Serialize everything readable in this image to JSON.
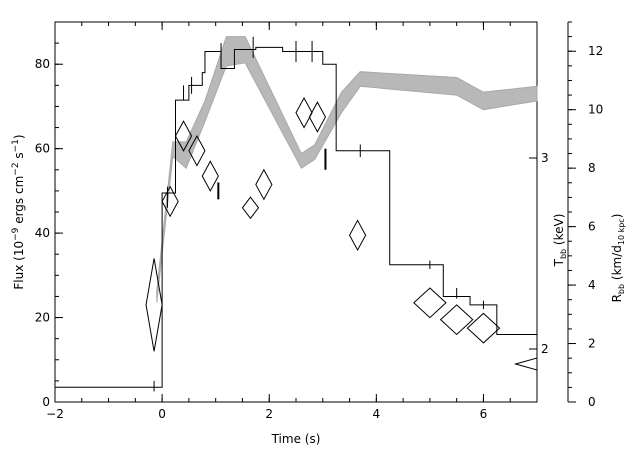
{
  "chart_data": {
    "type": "line",
    "xlabel": "Time (s)",
    "ylabel": {
      "main": "Flux (10",
      "exp1": "−9",
      "mid": " ergs cm",
      "exp2": "−2",
      "mid2": " s",
      "exp3": "−1",
      "end": ")"
    },
    "y2label": {
      "main": "T",
      "sub": "bb",
      "end": " (keV)"
    },
    "y3label": {
      "main": "R",
      "sub": "bb",
      "mid": " (km/d",
      "sub2": "10 kpc",
      "end": ")"
    },
    "xlim": [
      -2,
      7
    ],
    "ylim": [
      0,
      90
    ],
    "x_ticks": [
      "−2",
      "0",
      "2",
      "4",
      "6"
    ],
    "y_ticks": [
      "0",
      "20",
      "40",
      "60",
      "80"
    ],
    "temp_ticks": [
      "2",
      "3"
    ],
    "radius_ticks": [
      "0",
      "2",
      "4",
      "6",
      "8",
      "10",
      "12"
    ],
    "radius_lim": [
      0,
      13
    ],
    "series": [
      {
        "kind": "flux-histogram",
        "points": [
          [
            -2,
            3.5
          ],
          [
            -0.1,
            3.5
          ],
          [
            0,
            3.5
          ],
          [
            0,
            49.5
          ],
          [
            0.25,
            49.5
          ],
          [
            0.25,
            71.5
          ],
          [
            0.5,
            71.5
          ],
          [
            0.5,
            75
          ],
          [
            0.75,
            75
          ],
          [
            0.75,
            78
          ],
          [
            0.8,
            78
          ],
          [
            0.8,
            83
          ],
          [
            1.1,
            83
          ],
          [
            1.1,
            79
          ],
          [
            1.35,
            79
          ],
          [
            1.35,
            83.5
          ],
          [
            1.75,
            83.5
          ],
          [
            1.75,
            84
          ],
          [
            2.25,
            84
          ],
          [
            2.25,
            83
          ],
          [
            3.0,
            83
          ],
          [
            3.0,
            80
          ],
          [
            3.25,
            80
          ],
          [
            3.25,
            59.5
          ],
          [
            4.25,
            59.5
          ],
          [
            4.25,
            32.5
          ],
          [
            5.25,
            32.5
          ],
          [
            5.25,
            25
          ],
          [
            5.75,
            25
          ],
          [
            5.75,
            23
          ],
          [
            6.25,
            23
          ],
          [
            6.25,
            16
          ],
          [
            7.0,
            16
          ]
        ],
        "ticks": [
          [
            0.1,
            46,
            51
          ],
          [
            0.4,
            71.5,
            75
          ],
          [
            0.55,
            73,
            77
          ],
          [
            1.1,
            79.5,
            85
          ],
          [
            1.7,
            81.5,
            86.5
          ],
          [
            2.5,
            80.5,
            85.5
          ],
          [
            2.8,
            80.5,
            85.5
          ],
          [
            3.7,
            58,
            61
          ],
          [
            5.0,
            31.5,
            33.5
          ],
          [
            5.5,
            24.5,
            27
          ],
          [
            6.0,
            22,
            24
          ],
          [
            -0.15,
            2.5,
            5
          ]
        ]
      },
      {
        "kind": "radius-band",
        "upper": [
          [
            -0.1,
            3.8
          ],
          [
            0.2,
            8.9
          ],
          [
            0.45,
            8.9
          ],
          [
            0.8,
            10.3
          ],
          [
            1.2,
            12.5
          ],
          [
            1.55,
            12.5
          ],
          [
            2.6,
            8.5
          ],
          [
            2.85,
            8.8
          ],
          [
            3.35,
            10.6
          ],
          [
            3.7,
            11.3
          ],
          [
            5.5,
            11.1
          ],
          [
            6.0,
            10.6
          ],
          [
            7.0,
            10.8
          ]
        ],
        "lower": [
          [
            -0.1,
            3.4
          ],
          [
            0.2,
            8.4
          ],
          [
            0.45,
            8.0
          ],
          [
            0.8,
            9.6
          ],
          [
            1.2,
            11.5
          ],
          [
            1.55,
            11.6
          ],
          [
            2.6,
            8.0
          ],
          [
            2.85,
            8.3
          ],
          [
            3.35,
            9.9
          ],
          [
            3.7,
            10.8
          ],
          [
            5.5,
            10.5
          ],
          [
            6.0,
            10.0
          ],
          [
            7.0,
            10.3
          ]
        ]
      },
      {
        "kind": "temperature-diamonds",
        "points": [
          [
            -0.15,
            23,
            0.15,
            11
          ],
          [
            0.15,
            47.5,
            0.15,
            3.5
          ],
          [
            0.4,
            63,
            0.15,
            3.5
          ],
          [
            0.65,
            59.5,
            0.15,
            3.5
          ],
          [
            0.9,
            53.5,
            0.15,
            3.5
          ],
          [
            1.65,
            46,
            0.15,
            2.5
          ],
          [
            1.9,
            51.5,
            0.15,
            3.5
          ],
          [
            2.65,
            68.5,
            0.15,
            3.5
          ],
          [
            2.9,
            67.5,
            0.15,
            3.5
          ],
          [
            3.65,
            39.5,
            0.15,
            3.5
          ],
          [
            5.0,
            23.5,
            0.3,
            3.5
          ],
          [
            5.5,
            19.5,
            0.3,
            3.5
          ],
          [
            6.0,
            17.5,
            0.3,
            3.5
          ]
        ],
        "bars": [
          [
            1.05,
            48,
            52
          ],
          [
            3.05,
            55,
            60
          ]
        ]
      }
    ]
  }
}
